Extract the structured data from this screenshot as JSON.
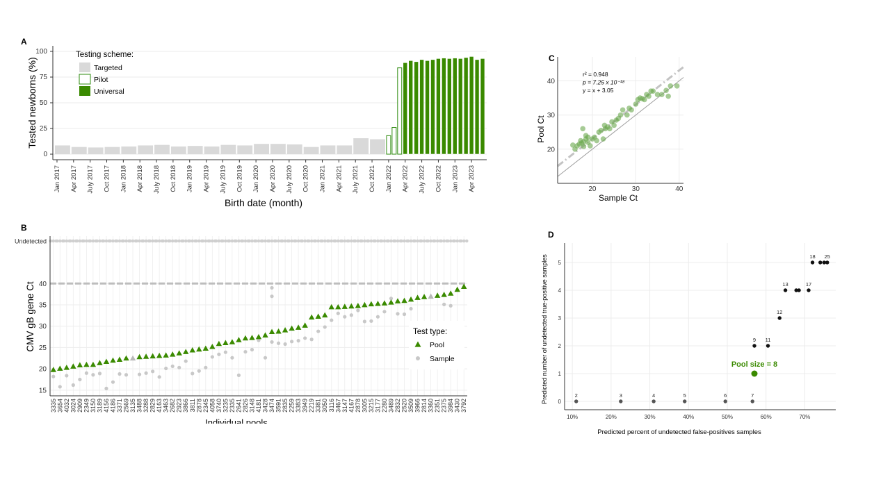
{
  "chart_data": [
    {
      "panel_label": "A",
      "type": "bar",
      "xlabel": "Birth date (month)",
      "ylabel": "Tested newborns (%)",
      "ylim": [
        0,
        100
      ],
      "yticks": [
        0,
        25,
        50,
        75,
        100
      ],
      "grid": true,
      "legend": {
        "title": "Testing scheme:",
        "placement": "top-left",
        "entries": [
          {
            "label": "Targeted",
            "color": "#d9d9d9"
          },
          {
            "label": "Pilot",
            "color": "#ffffff",
            "border": "#2e8b0e"
          },
          {
            "label": "Universal",
            "color": "#3a8a00"
          }
        ]
      },
      "xtick_labels": [
        "Jan 2017",
        "Apr 2017",
        "July 2017",
        "Oct 2017",
        "Jan 2018",
        "Apr 2018",
        "July 2018",
        "Oct 2018",
        "Jan 2019",
        "Apr 2019",
        "July 2019",
        "Oct 2019",
        "Jan 2020",
        "Apr 2020",
        "July 2020",
        "Oct 2020",
        "Jan 2021",
        "Apr 2021",
        "July 2021",
        "Oct 2021",
        "Jan 2022",
        "Apr 2022",
        "July 2022",
        "Oct 2022",
        "Jan 2023",
        "Apr 2023"
      ],
      "bars": [
        {
          "start": 0,
          "end": 3,
          "value": 8.5,
          "scheme": "Targeted"
        },
        {
          "start": 3,
          "end": 6,
          "value": 7,
          "scheme": "Targeted"
        },
        {
          "start": 6,
          "end": 9,
          "value": 6.5,
          "scheme": "Targeted"
        },
        {
          "start": 9,
          "end": 12,
          "value": 7,
          "scheme": "Targeted"
        },
        {
          "start": 12,
          "end": 15,
          "value": 7.5,
          "scheme": "Targeted"
        },
        {
          "start": 15,
          "end": 18,
          "value": 8.5,
          "scheme": "Targeted"
        },
        {
          "start": 18,
          "end": 21,
          "value": 9,
          "scheme": "Targeted"
        },
        {
          "start": 21,
          "end": 24,
          "value": 7.5,
          "scheme": "Targeted"
        },
        {
          "start": 24,
          "end": 27,
          "value": 8,
          "scheme": "Targeted"
        },
        {
          "start": 27,
          "end": 30,
          "value": 7.5,
          "scheme": "Targeted"
        },
        {
          "start": 30,
          "end": 33,
          "value": 9,
          "scheme": "Targeted"
        },
        {
          "start": 33,
          "end": 36,
          "value": 8.5,
          "scheme": "Targeted"
        },
        {
          "start": 36,
          "end": 39,
          "value": 10,
          "scheme": "Targeted"
        },
        {
          "start": 39,
          "end": 42,
          "value": 10,
          "scheme": "Targeted"
        },
        {
          "start": 42,
          "end": 45,
          "value": 9.5,
          "scheme": "Targeted"
        },
        {
          "start": 45,
          "end": 48,
          "value": 7,
          "scheme": "Targeted"
        },
        {
          "start": 48,
          "end": 51,
          "value": 8.5,
          "scheme": "Targeted"
        },
        {
          "start": 51,
          "end": 54,
          "value": 8.5,
          "scheme": "Targeted"
        },
        {
          "start": 54,
          "end": 57,
          "value": 15.5,
          "scheme": "Targeted"
        },
        {
          "start": 57,
          "end": 60,
          "value": 14.5,
          "scheme": "Targeted"
        },
        {
          "start": 60,
          "end": 61,
          "value": 18,
          "scheme": "Pilot"
        },
        {
          "start": 61,
          "end": 62,
          "value": 26,
          "scheme": "Pilot"
        },
        {
          "start": 62,
          "end": 63,
          "value": 84,
          "scheme": "Pilot"
        },
        {
          "start": 63,
          "end": 64,
          "value": 89,
          "scheme": "Universal"
        },
        {
          "start": 64,
          "end": 65,
          "value": 91,
          "scheme": "Universal"
        },
        {
          "start": 65,
          "end": 66,
          "value": 90,
          "scheme": "Universal"
        },
        {
          "start": 66,
          "end": 67,
          "value": 92,
          "scheme": "Universal"
        },
        {
          "start": 67,
          "end": 68,
          "value": 91,
          "scheme": "Universal"
        },
        {
          "start": 68,
          "end": 69,
          "value": 92,
          "scheme": "Universal"
        },
        {
          "start": 69,
          "end": 70,
          "value": 93,
          "scheme": "Universal"
        },
        {
          "start": 70,
          "end": 71,
          "value": 93.5,
          "scheme": "Universal"
        },
        {
          "start": 71,
          "end": 72,
          "value": 93,
          "scheme": "Universal"
        },
        {
          "start": 72,
          "end": 73,
          "value": 93.5,
          "scheme": "Universal"
        },
        {
          "start": 73,
          "end": 74,
          "value": 93,
          "scheme": "Universal"
        },
        {
          "start": 74,
          "end": 75,
          "value": 94,
          "scheme": "Universal"
        },
        {
          "start": 75,
          "end": 76,
          "value": 95,
          "scheme": "Universal"
        },
        {
          "start": 76,
          "end": 77,
          "value": 92,
          "scheme": "Universal"
        },
        {
          "start": 77,
          "end": 78,
          "value": 93,
          "scheme": "Universal"
        }
      ]
    },
    {
      "panel_label": "B",
      "type": "scatter",
      "ylabel": "CMV gB gene Ct",
      "xlabel": "Individual pools",
      "ylim": [
        14,
        42
      ],
      "yticks": [
        15,
        20,
        25,
        30,
        35,
        40
      ],
      "undetected_label": "Undetected",
      "legend": {
        "title": "Test type:",
        "placement": "bottom-right",
        "entries": [
          {
            "label": "Pool",
            "shape": "triangle",
            "color": "#3a8a00"
          },
          {
            "label": "Sample",
            "shape": "circle",
            "color": "#c8c8c8"
          }
        ]
      },
      "categories": [
        "3335",
        "3654",
        "4032",
        "3024",
        "2909",
        "2349",
        "3150",
        "3189",
        "4156",
        "4186",
        "3371",
        "2569",
        "3135",
        "3488",
        "3288",
        "2829",
        "4163",
        "3463",
        "2682",
        "2923",
        "3866",
        "3811",
        "2878",
        "2345",
        "4058",
        "3740",
        "3235",
        "2335",
        "2641",
        "2826",
        "3148",
        "4181",
        "3428",
        "3474",
        "3591",
        "2835",
        "2259",
        "3383",
        "3949",
        "2219",
        "3381",
        "3050",
        "3116",
        "3467",
        "3147",
        "4167",
        "2878",
        "3005",
        "3215",
        "3177",
        "2280",
        "3489",
        "2832",
        "2520",
        "3509",
        "3966",
        "2814",
        "3360",
        "2351",
        "2375",
        "3984",
        "3430",
        "3792"
      ],
      "pool_ct": [
        19.8,
        20.1,
        20.3,
        20.6,
        20.9,
        21.0,
        21.0,
        21.4,
        21.7,
        22.0,
        22.2,
        22.5,
        22.5,
        22.8,
        22.9,
        23.0,
        23.1,
        23.2,
        23.4,
        23.7,
        24.0,
        24.4,
        24.6,
        24.8,
        25.2,
        25.9,
        26.1,
        26.3,
        26.8,
        27.2,
        27.3,
        27.5,
        27.9,
        28.7,
        28.8,
        29.1,
        29.5,
        29.7,
        30.2,
        32.1,
        32.3,
        32.6,
        34.5,
        34.5,
        34.6,
        34.7,
        34.8,
        35.0,
        35.2,
        35.3,
        35.4,
        35.6,
        35.9,
        36.0,
        36.3,
        36.7,
        36.9,
        37.0,
        37.2,
        37.4,
        37.7,
        38.6,
        39.3
      ],
      "sample_ct": [
        18.2,
        15.8,
        18.4,
        16.2,
        17.5,
        19.0,
        18.6,
        18.9,
        15.4,
        16.9,
        18.8,
        18.6,
        null,
        18.7,
        19.0,
        19.4,
        18.1,
        20.1,
        20.6,
        20.3,
        21.8,
        18.9,
        19.5,
        20.3,
        22.8,
        23.4,
        23.9,
        22.6,
        18.5,
        24.0,
        24.5,
        26.7,
        22.6,
        26.3,
        26.0,
        25.8,
        26.4,
        26.6,
        27.2,
        26.9,
        28.8,
        29.8,
        31.4,
        33.0,
        32.2,
        32.6,
        33.7,
        31.1,
        31.2,
        32.2,
        33.4,
        36.5,
        32.9,
        32.8,
        34.1,
        null,
        null,
        null,
        null,
        35.1,
        34.8,
        null,
        null
      ],
      "extra_samples": [
        {
          "index": 33,
          "values": [
            39.0,
            37.0
          ]
        }
      ]
    },
    {
      "panel_label": "C",
      "type": "scatter",
      "xlabel": "Sample Ct",
      "ylabel": "Pool Ct",
      "xlim": [
        12,
        41
      ],
      "ylim": [
        10,
        47
      ],
      "xticks": [
        20,
        30,
        40
      ],
      "yticks": [
        20,
        30,
        40
      ],
      "annotations": [
        "r² = 0.948",
        "p = 7.25 x 10⁻¹⁸",
        "y = x + 3.05"
      ],
      "fit": {
        "slope": 1,
        "intercept": 3.05
      },
      "points": [
        [
          15.5,
          21.2
        ],
        [
          16,
          20
        ],
        [
          16.5,
          21
        ],
        [
          17,
          21.5
        ],
        [
          17.3,
          22.5
        ],
        [
          17.8,
          26
        ],
        [
          17.5,
          21.8
        ],
        [
          18,
          22.2
        ],
        [
          18,
          20.8
        ],
        [
          18.5,
          23
        ],
        [
          18.5,
          24
        ],
        [
          19,
          22
        ],
        [
          19,
          23.5
        ],
        [
          19.5,
          21
        ],
        [
          20,
          23
        ],
        [
          20.5,
          23.5
        ],
        [
          21,
          22.5
        ],
        [
          21.5,
          25
        ],
        [
          22,
          25.5
        ],
        [
          22.5,
          23
        ],
        [
          22.8,
          27
        ],
        [
          23,
          26
        ],
        [
          23.5,
          26.5
        ],
        [
          24,
          26
        ],
        [
          24.5,
          28
        ],
        [
          25,
          27
        ],
        [
          25.5,
          28.5
        ],
        [
          26,
          29
        ],
        [
          26.5,
          30
        ],
        [
          27,
          31.5
        ],
        [
          28,
          30
        ],
        [
          28.5,
          32
        ],
        [
          29,
          31.5
        ],
        [
          30,
          33.2
        ],
        [
          30.5,
          34.5
        ],
        [
          31,
          35
        ],
        [
          31.5,
          34.8
        ],
        [
          32,
          34.5
        ],
        [
          32.5,
          36
        ],
        [
          33,
          35.5
        ],
        [
          33.5,
          37
        ],
        [
          34,
          37
        ],
        [
          35,
          36
        ],
        [
          36,
          36
        ],
        [
          37,
          37.2
        ],
        [
          37.5,
          35.5
        ],
        [
          38,
          38.5
        ],
        [
          39.5,
          38.5
        ]
      ]
    },
    {
      "panel_label": "D",
      "type": "scatter",
      "xlabel": "Predicted percent of undetected false-positives samples",
      "ylabel": "Predicted number of undetected true-positive samples",
      "xlim": [
        8,
        78
      ],
      "ylim": [
        -0.3,
        5.7
      ],
      "xticks": [
        10,
        20,
        30,
        40,
        50,
        60,
        70
      ],
      "xtick_labels": [
        "10%",
        "20%",
        "30%",
        "40%",
        "50%",
        "60%",
        "70%"
      ],
      "yticks": [
        0,
        1,
        2,
        3,
        4,
        5
      ],
      "highlight_label": "Pool size = 8",
      "points": [
        {
          "label": "2",
          "x": 11,
          "y": 0
        },
        {
          "label": "3",
          "x": 22.5,
          "y": 0
        },
        {
          "label": "4",
          "x": 31,
          "y": 0
        },
        {
          "label": "5",
          "x": 39,
          "y": 0
        },
        {
          "label": "6",
          "x": 49.5,
          "y": 0
        },
        {
          "label": "7",
          "x": 56.5,
          "y": 0
        },
        {
          "label": "",
          "x": 57,
          "y": 1,
          "highlight": true
        },
        {
          "label": "9",
          "x": 57,
          "y": 2
        },
        {
          "label": "11",
          "x": 60.5,
          "y": 2
        },
        {
          "label": "12",
          "x": 63.5,
          "y": 3
        },
        {
          "label": "13",
          "x": 65,
          "y": 4
        },
        {
          "label": "",
          "x": 67.8,
          "y": 4
        },
        {
          "label": "",
          "x": 68.5,
          "y": 4
        },
        {
          "label": "17",
          "x": 71,
          "y": 4
        },
        {
          "label": "18",
          "x": 72,
          "y": 5
        },
        {
          "label": "",
          "x": 74,
          "y": 5
        },
        {
          "label": "",
          "x": 75,
          "y": 5
        },
        {
          "label": "25",
          "x": 75.8,
          "y": 5
        }
      ]
    }
  ]
}
